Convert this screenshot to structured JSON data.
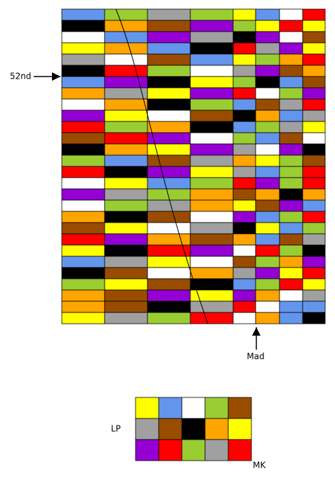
{
  "labels": {
    "row_marker": "52nd",
    "column_marker": "Mad",
    "key_left": "LP",
    "key_right": "MK"
  }
}
